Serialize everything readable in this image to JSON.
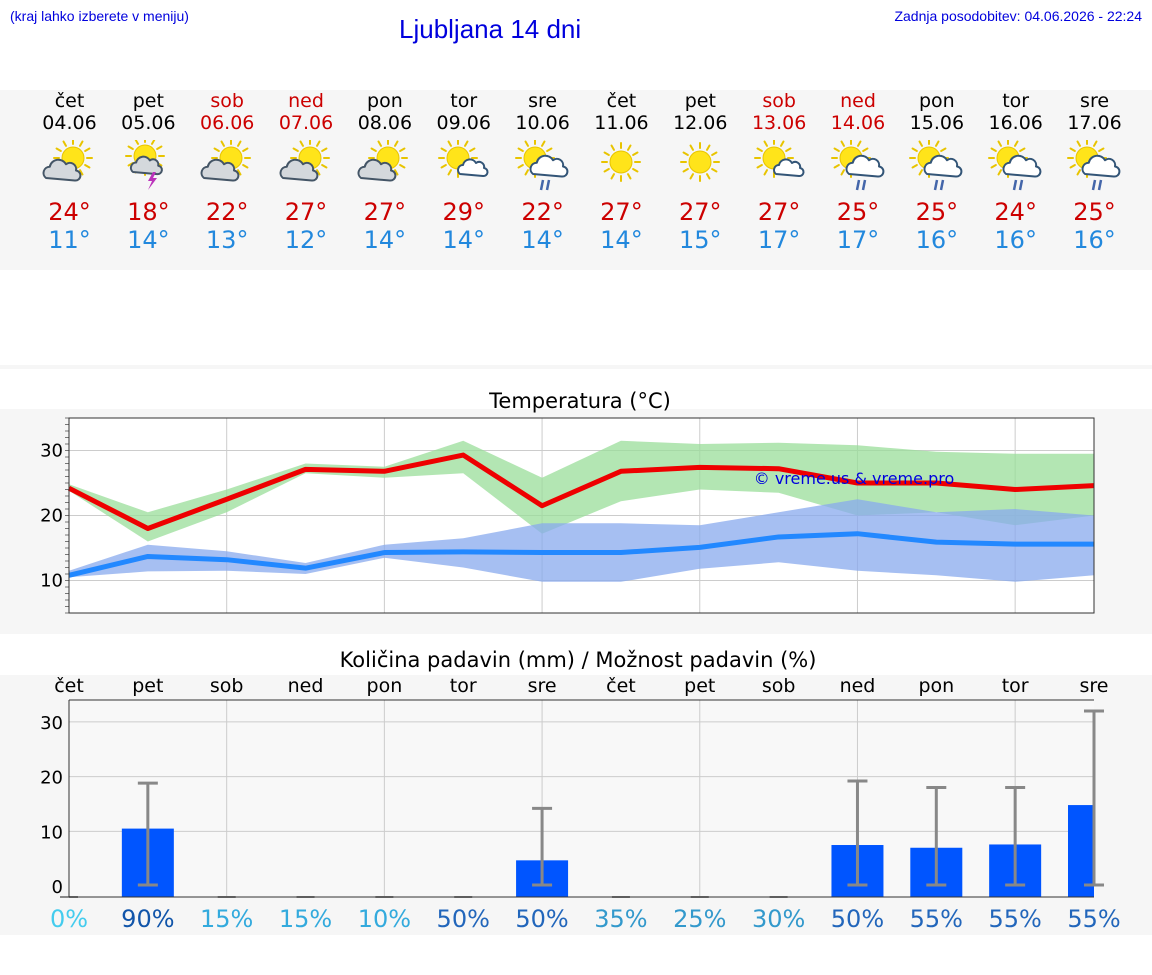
{
  "header": {
    "hint": "(kraj lahko izberete v meniju)",
    "title": "Ljubljana 14 dni",
    "updated": "Zadnja posodobitev: 04.06.2026 - 22:24"
  },
  "days": [
    {
      "weekday": "čet",
      "date": "04.06",
      "weekend": false,
      "icon": "sun-cloud-icon",
      "max": "24°",
      "min": "11°"
    },
    {
      "weekday": "pet",
      "date": "05.06",
      "weekend": false,
      "icon": "thunder-icon",
      "max": "18°",
      "min": "14°"
    },
    {
      "weekday": "sob",
      "date": "06.06",
      "weekend": true,
      "icon": "sun-cloud-icon",
      "max": "22°",
      "min": "13°"
    },
    {
      "weekday": "ned",
      "date": "07.06",
      "weekend": true,
      "icon": "sun-cloud-icon",
      "max": "27°",
      "min": "12°"
    },
    {
      "weekday": "pon",
      "date": "08.06",
      "weekend": false,
      "icon": "sun-cloud-icon",
      "max": "27°",
      "min": "14°"
    },
    {
      "weekday": "tor",
      "date": "09.06",
      "weekend": false,
      "icon": "sun-small-cloud-icon",
      "max": "29°",
      "min": "14°"
    },
    {
      "weekday": "sre",
      "date": "10.06",
      "weekend": false,
      "icon": "sun-cloud-rain-icon",
      "max": "22°",
      "min": "14°"
    },
    {
      "weekday": "čet",
      "date": "11.06",
      "weekend": false,
      "icon": "sun-icon",
      "max": "27°",
      "min": "14°"
    },
    {
      "weekday": "pet",
      "date": "12.06",
      "weekend": false,
      "icon": "sun-icon",
      "max": "27°",
      "min": "15°"
    },
    {
      "weekday": "sob",
      "date": "13.06",
      "weekend": true,
      "icon": "sun-small-cloud-icon",
      "max": "27°",
      "min": "17°"
    },
    {
      "weekday": "ned",
      "date": "14.06",
      "weekend": true,
      "icon": "sun-cloud-rain-icon",
      "max": "25°",
      "min": "17°"
    },
    {
      "weekday": "pon",
      "date": "15.06",
      "weekend": false,
      "icon": "sun-cloud-rain-icon",
      "max": "25°",
      "min": "16°"
    },
    {
      "weekday": "tor",
      "date": "16.06",
      "weekend": false,
      "icon": "sun-cloud-rain-icon",
      "max": "24°",
      "min": "16°"
    },
    {
      "weekday": "sre",
      "date": "17.06",
      "weekend": false,
      "icon": "sun-cloud-rain-icon",
      "max": "25°",
      "min": "16°"
    }
  ],
  "colors": {
    "max_line": "#ee0000",
    "max_band": "#99dd99",
    "min_line": "#2288ff",
    "min_band": "#88aaee",
    "bar": "#0055ff",
    "whisker": "#888888"
  },
  "chart_data": [
    {
      "type": "line",
      "title": "Temperatura (°C)",
      "watermark": "© vreme.us & vreme.pro",
      "ylim": [
        5,
        35
      ],
      "yticks": [
        10,
        20,
        30
      ],
      "grid": true,
      "x": [
        0,
        1,
        2,
        3,
        4,
        5,
        6,
        7,
        8,
        9,
        10,
        11,
        12,
        13
      ],
      "series": [
        {
          "name": "",
          "values": [
            24.2,
            18.0,
            22.5,
            27.1,
            26.8,
            29.3,
            21.5,
            26.8,
            27.4,
            27.2,
            25.0,
            25.0,
            24.0,
            24.6
          ]
        },
        {
          "name": "",
          "values": [
            10.8,
            13.7,
            13.2,
            11.9,
            14.3,
            14.4,
            14.3,
            14.3,
            15.1,
            16.7,
            17.2,
            15.9,
            15.6,
            15.6
          ]
        }
      ],
      "bands": [
        {
          "lower": [
            23.8,
            16.0,
            20.5,
            26.5,
            25.8,
            26.5,
            17.2,
            22.2,
            24.0,
            23.5,
            20.0,
            20.5,
            18.5,
            20.0
          ],
          "upper": [
            24.8,
            20.5,
            24.0,
            28.0,
            27.5,
            31.5,
            25.8,
            31.5,
            31.0,
            31.2,
            30.8,
            29.8,
            29.5,
            29.5
          ]
        },
        {
          "lower": [
            10.5,
            11.4,
            11.5,
            11.0,
            13.5,
            12.0,
            9.8,
            9.8,
            11.8,
            12.8,
            11.5,
            10.8,
            9.8,
            10.8
          ],
          "upper": [
            11.5,
            15.5,
            14.5,
            12.7,
            15.5,
            16.5,
            18.8,
            18.8,
            18.5,
            20.5,
            22.5,
            20.5,
            21.0,
            20.0
          ]
        }
      ]
    },
    {
      "type": "bar",
      "title": "Količina padavin (mm) / Možnost padavin (%)",
      "categories": [
        "čet",
        "pet",
        "sob",
        "ned",
        "pon",
        "tor",
        "sre",
        "čet",
        "pet",
        "sob",
        "ned",
        "pon",
        "tor",
        "sre"
      ],
      "ylim": [
        -2,
        34
      ],
      "yticks": [
        0,
        10,
        20,
        30
      ],
      "grid": true,
      "values": [
        0,
        10.5,
        0,
        0,
        0,
        0,
        4.7,
        0,
        0,
        0,
        7.5,
        7.0,
        7.6,
        14.8
      ],
      "error_high": [
        0,
        18.8,
        0,
        0,
        0,
        0,
        14.2,
        0,
        0,
        0,
        19.2,
        18.0,
        18.0,
        32.0
      ],
      "probability": [
        "0%",
        "90%",
        "15%",
        "15%",
        "10%",
        "50%",
        "50%",
        "35%",
        "25%",
        "30%",
        "50%",
        "55%",
        "55%",
        "55%"
      ],
      "probability_values": [
        0,
        90,
        15,
        15,
        10,
        50,
        50,
        35,
        25,
        30,
        50,
        55,
        55,
        55
      ]
    }
  ]
}
